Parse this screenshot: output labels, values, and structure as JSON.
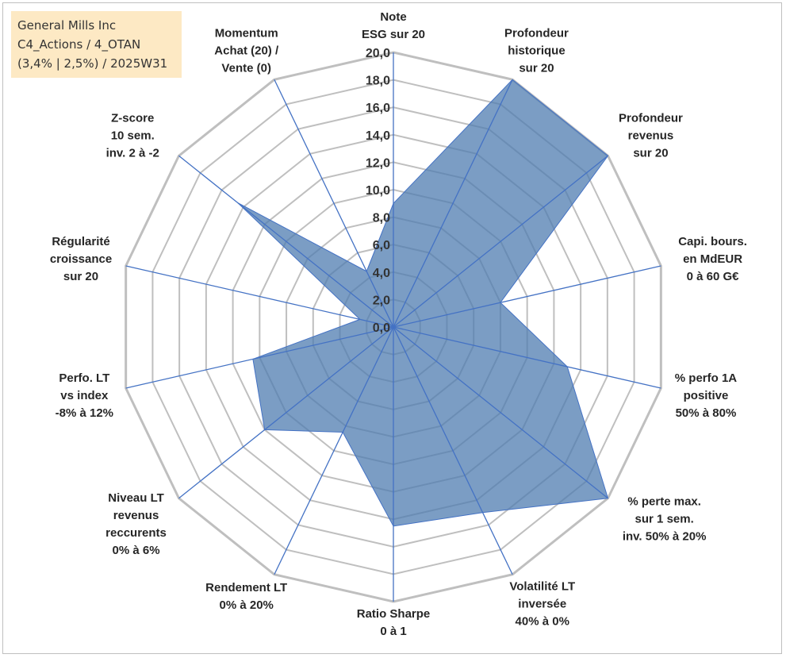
{
  "title_lines": [
    "General Mills Inc",
    "C4_Actions / 4_OTAN",
    "(3,4% | 2,5%) / 2025W31"
  ],
  "colors": {
    "fill": "#4f7cb0",
    "spoke": "#4472c4",
    "grid": "#bfbfbf",
    "title_bg": "#fde9c4"
  },
  "chart_data": {
    "type": "radar",
    "title": "General Mills Inc",
    "rlim": [
      0,
      20
    ],
    "tick_values": [
      0,
      2,
      4,
      6,
      8,
      10,
      12,
      14,
      16,
      18,
      20
    ],
    "tick_labels": [
      "0,0",
      "2,0",
      "4,0",
      "6,0",
      "8,0",
      "10,0",
      "12,0",
      "14,0",
      "16,0",
      "18,0",
      "20,0"
    ],
    "grid": true,
    "axes": [
      {
        "label": [
          "Note",
          "ESG sur 20"
        ],
        "value": 9.0
      },
      {
        "label": [
          "Profondeur",
          "historique",
          "sur 20"
        ],
        "value": 20.0
      },
      {
        "label": [
          "Profondeur",
          "revenus",
          "sur 20"
        ],
        "value": 20.0
      },
      {
        "label": [
          "Capi. bours.",
          "en MdEUR",
          "0 à 60 G€"
        ],
        "value": 8.0
      },
      {
        "label": [
          "% perfo 1A",
          "positive",
          "50% à 80%"
        ],
        "value": 13.0
      },
      {
        "label": [
          "% perte max.",
          "sur 1 sem.",
          "inv. 50% à 20%"
        ],
        "value": 20.0
      },
      {
        "label": [
          "Volatilité LT",
          "inversée",
          "40% à 0%"
        ],
        "value": 15.0
      },
      {
        "label": [
          "Ratio Sharpe",
          "0 à 1"
        ],
        "value": 14.5
      },
      {
        "label": [
          "Rendement LT",
          "0% à 20%"
        ],
        "value": 8.5
      },
      {
        "label": [
          "Niveau LT",
          "revenus",
          "reccurents",
          "0% à 6%"
        ],
        "value": 12.0
      },
      {
        "label": [
          "Perfo. LT",
          "vs index",
          "-8% à 12%"
        ],
        "value": 10.5
      },
      {
        "label": [
          "Régularité",
          "croissance",
          "sur 20"
        ],
        "value": 2.5
      },
      {
        "label": [
          "Z-score",
          "10 sem.",
          "inv. 2 à -2"
        ],
        "value": 14.5
      },
      {
        "label": [
          "Momentum",
          "Achat (20) /",
          "Vente (0)"
        ],
        "value": 4.5
      }
    ]
  }
}
